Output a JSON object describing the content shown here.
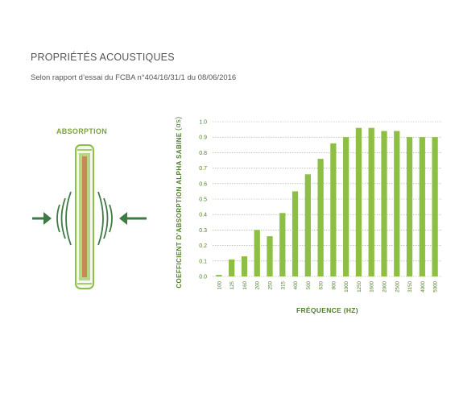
{
  "header": {
    "title": "PROPRIÉTÉS ACOUSTIQUES",
    "subtitle": "Selon rapport d’essai du FCBA n°404/16/31/1 du 08/06/2016"
  },
  "illustration": {
    "label": "ABSORPTION",
    "icons": [
      "arrow-right-icon",
      "sound-wave-icon",
      "acoustic-panel-icon",
      "sound-wave-icon",
      "arrow-left-icon"
    ]
  },
  "colors": {
    "bar": "#8dbf45",
    "axis_text": "#4f7f2a",
    "panel_edge": "#8dbf45",
    "panel_core": "#c78a52",
    "arrow": "#3f7a45"
  },
  "chart_data": {
    "type": "bar",
    "title": "",
    "ylabel": "COEFFICIENT D’ABSORPTION ALPHA SABINE",
    "ylabel_symbol": "(αs)",
    "xlabel": "FRÉQUENCE (HZ)",
    "categories": [
      "100",
      "125",
      "160",
      "200",
      "250",
      "315",
      "400",
      "500",
      "630",
      "800",
      "1000",
      "1250",
      "1600",
      "2000",
      "2500",
      "3150",
      "4000",
      "5000"
    ],
    "values": [
      0.01,
      0.11,
      0.13,
      0.3,
      0.26,
      0.41,
      0.55,
      0.66,
      0.76,
      0.86,
      0.9,
      0.96,
      0.96,
      0.94,
      0.94,
      0.9,
      0.9,
      0.9
    ],
    "yticks": [
      "0.0",
      "0.1",
      "0.2",
      "0.3",
      "0.4",
      "0.5",
      "0.6",
      "0.7",
      "0.8",
      "0.9",
      "1.0"
    ],
    "ylim": [
      0,
      1
    ],
    "grid": true
  }
}
